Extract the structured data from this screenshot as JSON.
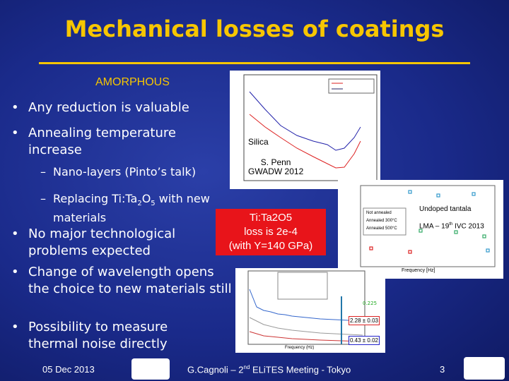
{
  "header": {
    "title": "Mechanical losses of coatings",
    "section": "AMORPHOUS"
  },
  "bullets": [
    {
      "text": "Any reduction is valuable"
    },
    {
      "text": "Annealing temperature increase",
      "sub": [
        {
          "text": "Nano-layers (Pinto’s talk)"
        },
        {
          "parts": [
            "Replacing Ti:Ta",
            "2",
            "O",
            "5",
            " with new materials"
          ]
        }
      ]
    },
    {
      "text": "No major technological problems expected"
    },
    {
      "text": "Change of wavelength opens the choice to new materials still"
    },
    {
      "text": "Possibility to measure thermal noise directly"
    }
  ],
  "figures": {
    "silica": {
      "label": "Silica",
      "credit": [
        "S. Penn",
        "GWADW 2012"
      ]
    },
    "tantala": {
      "label": "Undoped tantala",
      "credit_parts": [
        "LMA – 19",
        "th",
        " IVC 2013"
      ],
      "x_label": "Frequency [Hz]",
      "legend": [
        "Not annealed",
        "Annealed 300°C",
        "Annealed 500°C"
      ]
    },
    "callout": {
      "lines": [
        "Ti:Ta2O5",
        "loss is 2e-4",
        "(with Y=140 GPa)"
      ]
    },
    "spectrum": {
      "annotations": [
        "0.225",
        "2.28 ± 0.03",
        "0.43 ± 0.02"
      ],
      "x_label": "Frequency (Hz)"
    }
  },
  "footer": {
    "date": "05 Dec 2013",
    "event_parts": [
      "G.Cagnoli – 2",
      "nd",
      " ELiTES Meeting - Tokyo"
    ],
    "page": "3"
  }
}
